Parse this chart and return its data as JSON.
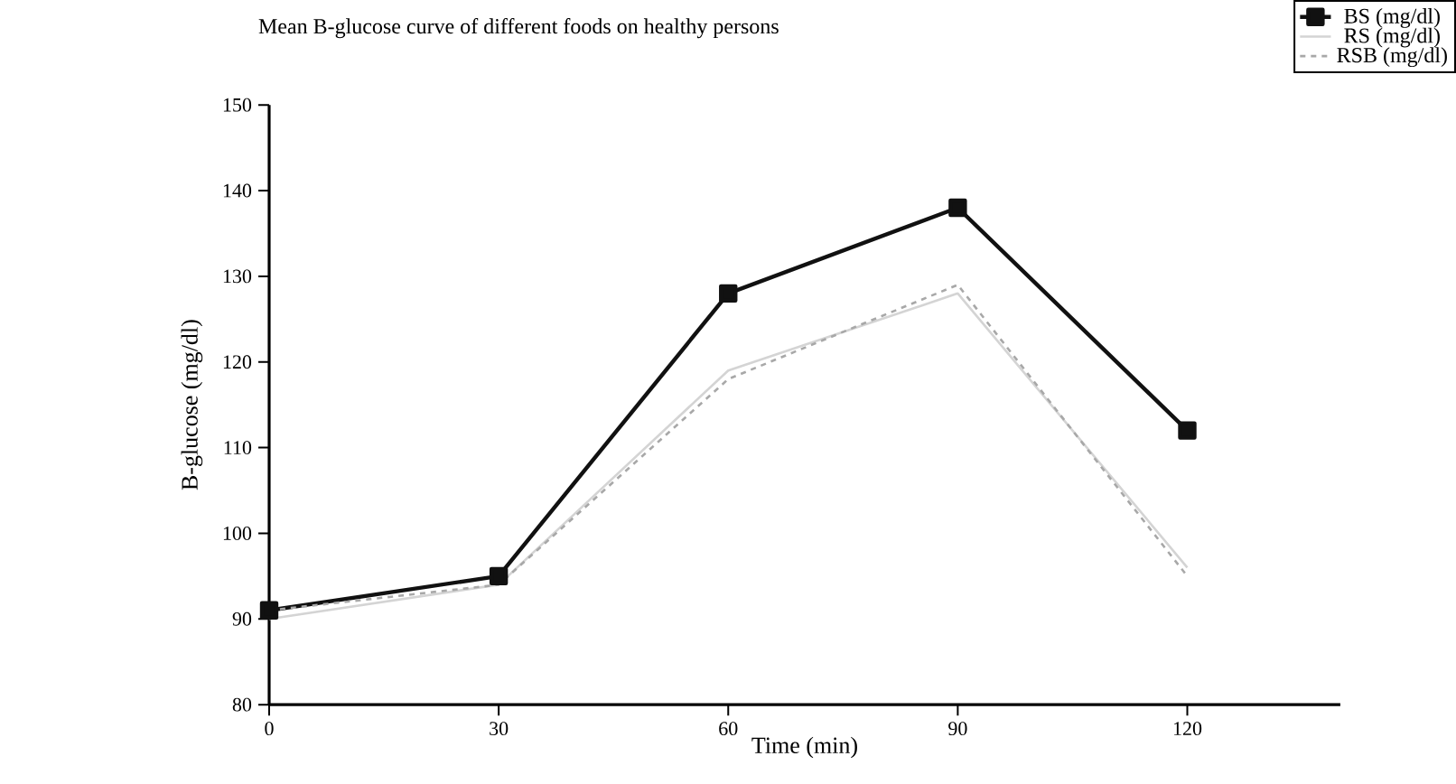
{
  "chart_data": {
    "type": "line",
    "title": "Mean B-glucose curve of different foods on healthy persons",
    "xlabel": "Time (min)",
    "ylabel": "B-glucose (mg/dl)",
    "x": [
      0,
      30,
      60,
      90,
      120
    ],
    "series": [
      {
        "name": "BS (mg/dl)",
        "color": "#111111",
        "values": [
          91,
          95,
          128,
          138,
          112
        ],
        "marker": "square",
        "line_style": "solid"
      },
      {
        "name": "RS (mg/dl)",
        "color": "#d4d4d4",
        "values": [
          90,
          94,
          119,
          128,
          96
        ],
        "marker": "none",
        "line_style": "solid"
      },
      {
        "name": "RSB (mg/dl)",
        "color": "#a8a8a8",
        "values": [
          91,
          94,
          118,
          129,
          95
        ],
        "marker": "none",
        "line_style": "dashed"
      }
    ],
    "xlim": [
      0,
      140
    ],
    "ylim": [
      80,
      150
    ],
    "xticks": [
      0,
      30,
      60,
      90,
      120
    ],
    "yticks": [
      80,
      90,
      100,
      110,
      120,
      130,
      140,
      150
    ],
    "legend": "top right"
  }
}
